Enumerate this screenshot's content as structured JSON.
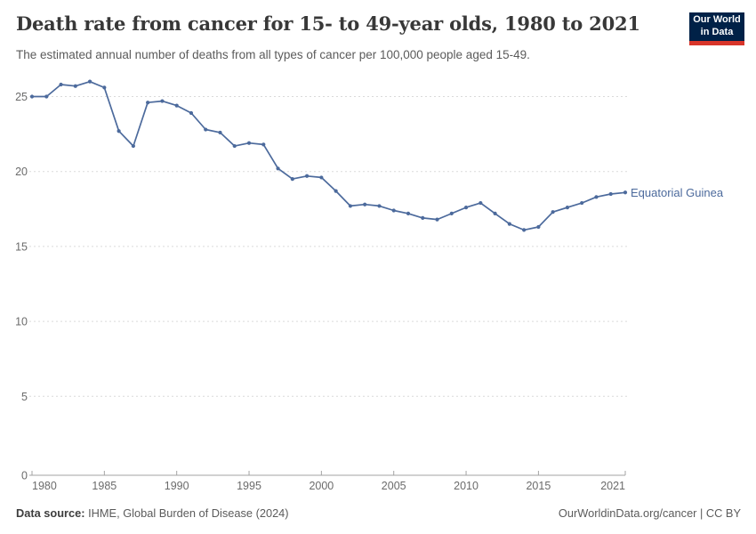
{
  "header": {
    "title": "Death rate from cancer for 15- to 49-year olds, 1980 to 2021",
    "subtitle": "The estimated annual number of deaths from all types of cancer per 100,000 people aged 15-49."
  },
  "logo": {
    "line1": "Our World",
    "line2": "in Data"
  },
  "chart_data": {
    "type": "line",
    "title": "Death rate from cancer for 15- to 49-year olds, 1980 to 2021",
    "xlabel": "",
    "ylabel": "",
    "x": [
      1980,
      1981,
      1982,
      1983,
      1984,
      1985,
      1986,
      1987,
      1988,
      1989,
      1990,
      1991,
      1992,
      1993,
      1994,
      1995,
      1996,
      1997,
      1998,
      1999,
      2000,
      2001,
      2002,
      2003,
      2004,
      2005,
      2006,
      2007,
      2008,
      2009,
      2010,
      2011,
      2012,
      2013,
      2014,
      2015,
      2016,
      2017,
      2018,
      2019,
      2020,
      2021
    ],
    "series": [
      {
        "name": "Equatorial Guinea",
        "values": [
          25.0,
          25.0,
          25.8,
          25.7,
          26.0,
          25.6,
          22.7,
          21.7,
          24.6,
          24.7,
          24.4,
          23.9,
          22.8,
          22.6,
          21.7,
          21.9,
          21.8,
          20.2,
          19.5,
          19.7,
          19.6,
          18.7,
          17.7,
          17.8,
          17.7,
          17.4,
          17.2,
          16.9,
          16.8,
          17.2,
          17.6,
          17.9,
          17.2,
          16.5,
          16.1,
          16.3,
          17.3,
          17.6,
          17.9,
          18.3,
          18.5,
          18.6
        ]
      }
    ],
    "xlim": [
      1980,
      2021
    ],
    "ylim": [
      0,
      26.5
    ],
    "xticks": [
      1980,
      1985,
      1990,
      1995,
      2000,
      2005,
      2010,
      2015,
      2021
    ],
    "yticks": [
      0,
      5,
      10,
      15,
      20,
      25
    ],
    "grid": "horizontal-dashed",
    "legend_position": "end-of-line-label",
    "entity_label": "Equatorial Guinea",
    "colors": {
      "line": "#4C6A9C",
      "entity_label": "#4C6A9C",
      "grid": "#dadada",
      "axis": "#a3a3a3",
      "tick_label": "#6b6b6b"
    }
  },
  "footer": {
    "source_label": "Data source:",
    "source_text": " IHME, Global Burden of Disease (2024)",
    "right_text": "OurWorldinData.org/cancer | CC BY"
  }
}
